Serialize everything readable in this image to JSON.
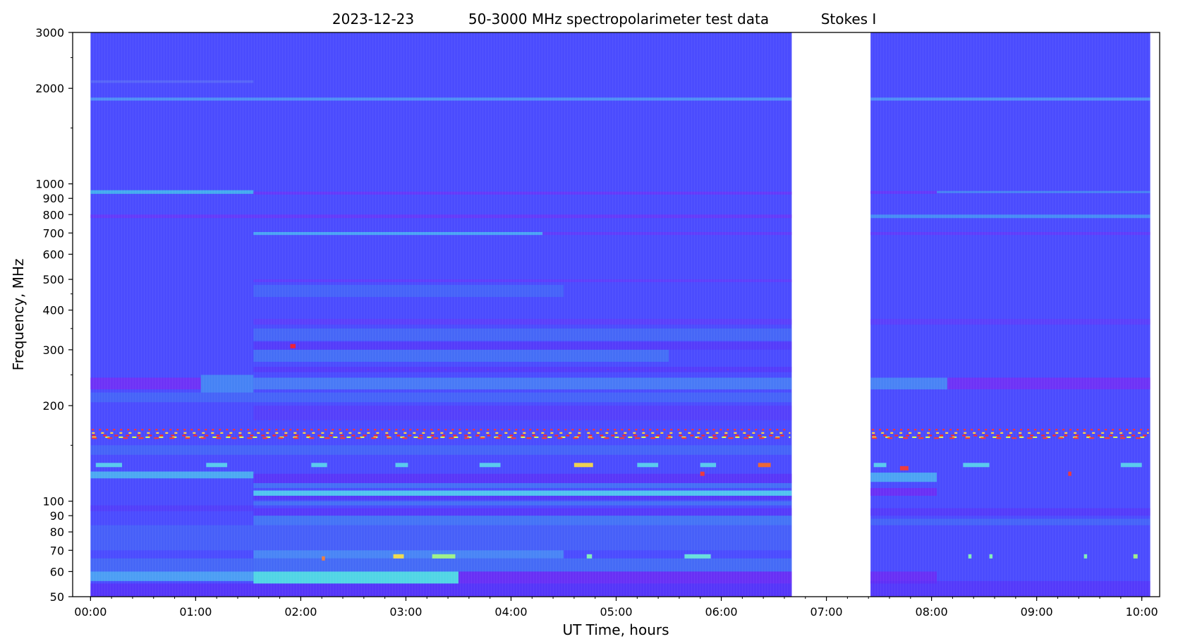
{
  "chart_data": {
    "type": "heatmap",
    "title_parts": [
      "2023-12-23",
      "50-3000 MHz spectropolarimeter test data",
      "Stokes I"
    ],
    "xlabel": "UT Time, hours",
    "ylabel": "Frequency, MHz",
    "x_scale": "linear",
    "y_scale": "log",
    "xlim_hours": [
      -0.17,
      10.17
    ],
    "ylim_mhz": [
      50,
      3000
    ],
    "x_ticks": [
      {
        "value": 0,
        "label": "00:00"
      },
      {
        "value": 1,
        "label": "01:00"
      },
      {
        "value": 2,
        "label": "02:00"
      },
      {
        "value": 3,
        "label": "03:00"
      },
      {
        "value": 4,
        "label": "04:00"
      },
      {
        "value": 5,
        "label": "05:00"
      },
      {
        "value": 6,
        "label": "06:00"
      },
      {
        "value": 7,
        "label": "07:00"
      },
      {
        "value": 8,
        "label": "08:00"
      },
      {
        "value": 9,
        "label": "09:00"
      },
      {
        "value": 10,
        "label": "10:00"
      }
    ],
    "y_ticks": [
      {
        "value": 50,
        "label": "50"
      },
      {
        "value": 60,
        "label": "60"
      },
      {
        "value": 70,
        "label": "70"
      },
      {
        "value": 80,
        "label": "80"
      },
      {
        "value": 90,
        "label": "90"
      },
      {
        "value": 100,
        "label": "100"
      },
      {
        "value": 200,
        "label": "200"
      },
      {
        "value": 300,
        "label": "300"
      },
      {
        "value": 400,
        "label": "400"
      },
      {
        "value": 500,
        "label": "500"
      },
      {
        "value": 600,
        "label": "600"
      },
      {
        "value": 700,
        "label": "700"
      },
      {
        "value": 800,
        "label": "800"
      },
      {
        "value": 900,
        "label": "900"
      },
      {
        "value": 1000,
        "label": "1000"
      },
      {
        "value": 2000,
        "label": "2000"
      },
      {
        "value": 3000,
        "label": "3000"
      }
    ],
    "y_minor_ticks": [
      150,
      250,
      350,
      450,
      1500,
      2500
    ],
    "x_minor_step_hours": 0.2,
    "data_segments_hours": [
      [
        0,
        6.67
      ],
      [
        7.42,
        10.08
      ]
    ],
    "background_color": "#4b4cfe",
    "bands": [
      {
        "f0": 2080,
        "f1": 2120,
        "t0": 0,
        "t1": 1.55,
        "color": "#5a6cf8",
        "opacity": 0.8
      },
      {
        "f0": 1830,
        "f1": 1870,
        "t0": 0,
        "t1": 6.67,
        "color": "#55c8f0",
        "opacity": 0.55
      },
      {
        "f0": 1830,
        "f1": 1870,
        "t0": 7.42,
        "t1": 10.08,
        "color": "#55c8f0",
        "opacity": 0.55
      },
      {
        "f0": 930,
        "f1": 955,
        "t0": 0,
        "t1": 1.55,
        "color": "#44b6ee",
        "opacity": 0.9
      },
      {
        "f0": 925,
        "f1": 945,
        "t0": 1.55,
        "t1": 6.67,
        "color": "#6a36f8",
        "opacity": 0.85
      },
      {
        "f0": 930,
        "f1": 950,
        "t0": 7.42,
        "t1": 8.05,
        "color": "#6a36f8",
        "opacity": 0.85
      },
      {
        "f0": 935,
        "f1": 950,
        "t0": 8.05,
        "t1": 10.08,
        "color": "#45a8ee",
        "opacity": 0.6
      },
      {
        "f0": 780,
        "f1": 800,
        "t0": 0,
        "t1": 6.67,
        "color": "#6a36f8",
        "opacity": 0.8
      },
      {
        "f0": 780,
        "f1": 800,
        "t0": 7.42,
        "t1": 10.08,
        "color": "#45b8ee",
        "opacity": 0.6
      },
      {
        "f0": 690,
        "f1": 705,
        "t0": 1.55,
        "t1": 4.3,
        "color": "#4ccbf0",
        "opacity": 0.7
      },
      {
        "f0": 690,
        "f1": 705,
        "t0": 4.3,
        "t1": 6.67,
        "color": "#6a36f8",
        "opacity": 0.7
      },
      {
        "f0": 690,
        "f1": 705,
        "t0": 7.42,
        "t1": 10.08,
        "color": "#6a36f8",
        "opacity": 0.7
      },
      {
        "f0": 490,
        "f1": 500,
        "t0": 1.55,
        "t1": 6.67,
        "color": "#6a36f8",
        "opacity": 0.6
      },
      {
        "f0": 440,
        "f1": 480,
        "t0": 1.55,
        "t1": 4.5,
        "color": "#3f8ff0",
        "opacity": 0.35
      },
      {
        "f0": 360,
        "f1": 375,
        "t0": 1.55,
        "t1": 6.67,
        "color": "#6a36f8",
        "opacity": 0.55
      },
      {
        "f0": 360,
        "f1": 375,
        "t0": 7.42,
        "t1": 10.08,
        "color": "#6a36f8",
        "opacity": 0.55
      },
      {
        "f0": 320,
        "f1": 350,
        "t0": 1.55,
        "t1": 6.67,
        "color": "#3f92ee",
        "opacity": 0.4
      },
      {
        "f0": 300,
        "f1": 318,
        "t0": 1.55,
        "t1": 6.67,
        "color": "#5c30f6",
        "opacity": 0.55
      },
      {
        "f0": 275,
        "f1": 300,
        "t0": 1.55,
        "t1": 5.5,
        "color": "#3f9cee",
        "opacity": 0.45
      },
      {
        "f0": 255,
        "f1": 265,
        "t0": 1.55,
        "t1": 6.67,
        "color": "#5c30f6",
        "opacity": 0.55
      },
      {
        "f0": 225,
        "f1": 245,
        "t0": 0,
        "t1": 1.05,
        "color": "#7032f6",
        "opacity": 0.95
      },
      {
        "f0": 220,
        "f1": 250,
        "t0": 1.05,
        "t1": 1.55,
        "color": "#42a8ee",
        "opacity": 0.6
      },
      {
        "f0": 225,
        "f1": 245,
        "t0": 1.55,
        "t1": 6.67,
        "color": "#48a8ee",
        "opacity": 0.5
      },
      {
        "f0": 225,
        "f1": 245,
        "t0": 7.42,
        "t1": 8.15,
        "color": "#48a8ee",
        "opacity": 0.6
      },
      {
        "f0": 225,
        "f1": 245,
        "t0": 8.15,
        "t1": 10.08,
        "color": "#7032f6",
        "opacity": 0.95
      },
      {
        "f0": 205,
        "f1": 220,
        "t0": 0,
        "t1": 6.67,
        "color": "#3f92ee",
        "opacity": 0.35
      },
      {
        "f0": 180,
        "f1": 200,
        "t0": 1.55,
        "t1": 6.67,
        "color": "#6430f4",
        "opacity": 0.4
      },
      {
        "f0": 140,
        "f1": 150,
        "t0": 0,
        "t1": 6.67,
        "color": "#3f92ee",
        "opacity": 0.35
      },
      {
        "f0": 118,
        "f1": 124,
        "t0": 0,
        "t1": 1.55,
        "color": "#4cbaf0",
        "opacity": 0.85
      },
      {
        "f0": 114,
        "f1": 122,
        "t0": 1.55,
        "t1": 6.67,
        "color": "#5c30f6",
        "opacity": 0.75
      },
      {
        "f0": 115,
        "f1": 123,
        "t0": 7.42,
        "t1": 8.05,
        "color": "#4cbaf0",
        "opacity": 0.8
      },
      {
        "f0": 110,
        "f1": 114,
        "t0": 1.55,
        "t1": 6.67,
        "color": "#3f92ee",
        "opacity": 0.5
      },
      {
        "f0": 104,
        "f1": 108,
        "t0": 1.55,
        "t1": 6.67,
        "color": "#52d0ee",
        "opacity": 0.9
      },
      {
        "f0": 101,
        "f1": 104,
        "t0": 1.55,
        "t1": 6.67,
        "color": "#5c30f6",
        "opacity": 0.7
      },
      {
        "f0": 104,
        "f1": 110,
        "t0": 7.42,
        "t1": 8.05,
        "color": "#6e2ef4",
        "opacity": 0.9
      },
      {
        "f0": 97,
        "f1": 100,
        "t0": 1.55,
        "t1": 6.67,
        "color": "#3f92ee",
        "opacity": 0.5
      },
      {
        "f0": 93,
        "f1": 97,
        "t0": 0,
        "t1": 1.55,
        "color": "#5c30f6",
        "opacity": 0.45
      },
      {
        "f0": 90,
        "f1": 95,
        "t0": 1.55,
        "t1": 6.67,
        "color": "#5c30f6",
        "opacity": 0.6
      },
      {
        "f0": 90,
        "f1": 95,
        "t0": 7.42,
        "t1": 10.08,
        "color": "#5c30f6",
        "opacity": 0.55
      },
      {
        "f0": 84,
        "f1": 90,
        "t0": 1.55,
        "t1": 6.67,
        "color": "#3f9cee",
        "opacity": 0.5
      },
      {
        "f0": 84,
        "f1": 88,
        "t0": 7.42,
        "t1": 10.08,
        "color": "#3f92ee",
        "opacity": 0.35
      },
      {
        "f0": 70,
        "f1": 84,
        "t0": 0,
        "t1": 6.67,
        "color": "#3f8ff0",
        "opacity": 0.3
      },
      {
        "f0": 66,
        "f1": 70,
        "t0": 1.55,
        "t1": 4.5,
        "color": "#48b4ee",
        "opacity": 0.55
      },
      {
        "f0": 60,
        "f1": 66,
        "t0": 0,
        "t1": 1.55,
        "color": "#3f92ee",
        "opacity": 0.4
      },
      {
        "f0": 60,
        "f1": 66,
        "t0": 1.55,
        "t1": 6.67,
        "color": "#3f92ee",
        "opacity": 0.45
      },
      {
        "f0": 56,
        "f1": 60,
        "t0": 0,
        "t1": 1.55,
        "color": "#4cbaf0",
        "opacity": 0.75
      },
      {
        "f0": 55,
        "f1": 60,
        "t0": 1.55,
        "t1": 3.5,
        "color": "#52e4e2",
        "opacity": 0.9
      },
      {
        "f0": 55,
        "f1": 60,
        "t0": 3.5,
        "t1": 6.67,
        "color": "#6c2ef4",
        "opacity": 0.9
      },
      {
        "f0": 55,
        "f1": 60,
        "t0": 7.42,
        "t1": 8.05,
        "color": "#6c2ef4",
        "opacity": 0.9
      },
      {
        "f0": 50,
        "f1": 55,
        "t0": 0,
        "t1": 6.67,
        "color": "#5a2ef6",
        "opacity": 0.7
      },
      {
        "f0": 50,
        "f1": 56,
        "t0": 7.42,
        "t1": 10.08,
        "color": "#5a2ef6",
        "opacity": 0.6
      }
    ],
    "rfi_rows": [
      {
        "f": 168,
        "color": "#ff3030"
      },
      {
        "f": 164,
        "color": "#ffcf40"
      },
      {
        "f": 161,
        "color": "#ff2a2a"
      },
      {
        "f": 159,
        "color": "#d8ff50"
      },
      {
        "f": 158,
        "color": "#ff3a2a"
      }
    ],
    "spots": [
      {
        "t": 0.05,
        "f": 130,
        "w": 0.25,
        "color": "#5cd8ec"
      },
      {
        "t": 1.1,
        "f": 130,
        "w": 0.2,
        "color": "#5cd8ec"
      },
      {
        "t": 2.1,
        "f": 130,
        "w": 0.15,
        "color": "#5cd8ec"
      },
      {
        "t": 2.9,
        "f": 130,
        "w": 0.12,
        "color": "#5cd8ec"
      },
      {
        "t": 3.7,
        "f": 130,
        "w": 0.2,
        "color": "#5cd8ec"
      },
      {
        "t": 4.6,
        "f": 130,
        "w": 0.18,
        "color": "#ffe040"
      },
      {
        "t": 5.2,
        "f": 130,
        "w": 0.2,
        "color": "#5cd8ec"
      },
      {
        "t": 5.8,
        "f": 130,
        "w": 0.15,
        "color": "#5cd8ec"
      },
      {
        "t": 6.35,
        "f": 130,
        "w": 0.12,
        "color": "#ff6a20"
      },
      {
        "t": 7.45,
        "f": 130,
        "w": 0.12,
        "color": "#5cd8ec"
      },
      {
        "t": 8.3,
        "f": 130,
        "w": 0.25,
        "color": "#5cd8ec"
      },
      {
        "t": 9.8,
        "f": 130,
        "w": 0.2,
        "color": "#5cd8ec"
      },
      {
        "t": 1.9,
        "f": 308,
        "w": 0.05,
        "color": "#ff2020"
      },
      {
        "t": 2.88,
        "f": 67,
        "w": 0.1,
        "color": "#ffe640"
      },
      {
        "t": 3.25,
        "f": 67,
        "w": 0.22,
        "color": "#a8ff80"
      },
      {
        "t": 4.72,
        "f": 67,
        "w": 0.05,
        "color": "#8affb0"
      },
      {
        "t": 5.65,
        "f": 67,
        "w": 0.25,
        "color": "#6ef0d8"
      },
      {
        "t": 2.2,
        "f": 66,
        "w": 0.03,
        "color": "#ff8030"
      },
      {
        "t": 8.35,
        "f": 67,
        "w": 0.03,
        "color": "#8affb0"
      },
      {
        "t": 8.55,
        "f": 67,
        "w": 0.03,
        "color": "#8affb0"
      },
      {
        "t": 9.45,
        "f": 67,
        "w": 0.03,
        "color": "#8affb0"
      },
      {
        "t": 9.92,
        "f": 67,
        "w": 0.04,
        "color": "#a8ff80"
      },
      {
        "t": 5.8,
        "f": 122,
        "w": 0.04,
        "color": "#ff3a2a"
      },
      {
        "t": 9.3,
        "f": 122,
        "w": 0.03,
        "color": "#ff3a2a"
      },
      {
        "t": 7.7,
        "f": 127,
        "w": 0.08,
        "color": "#ff3a2a"
      }
    ]
  }
}
